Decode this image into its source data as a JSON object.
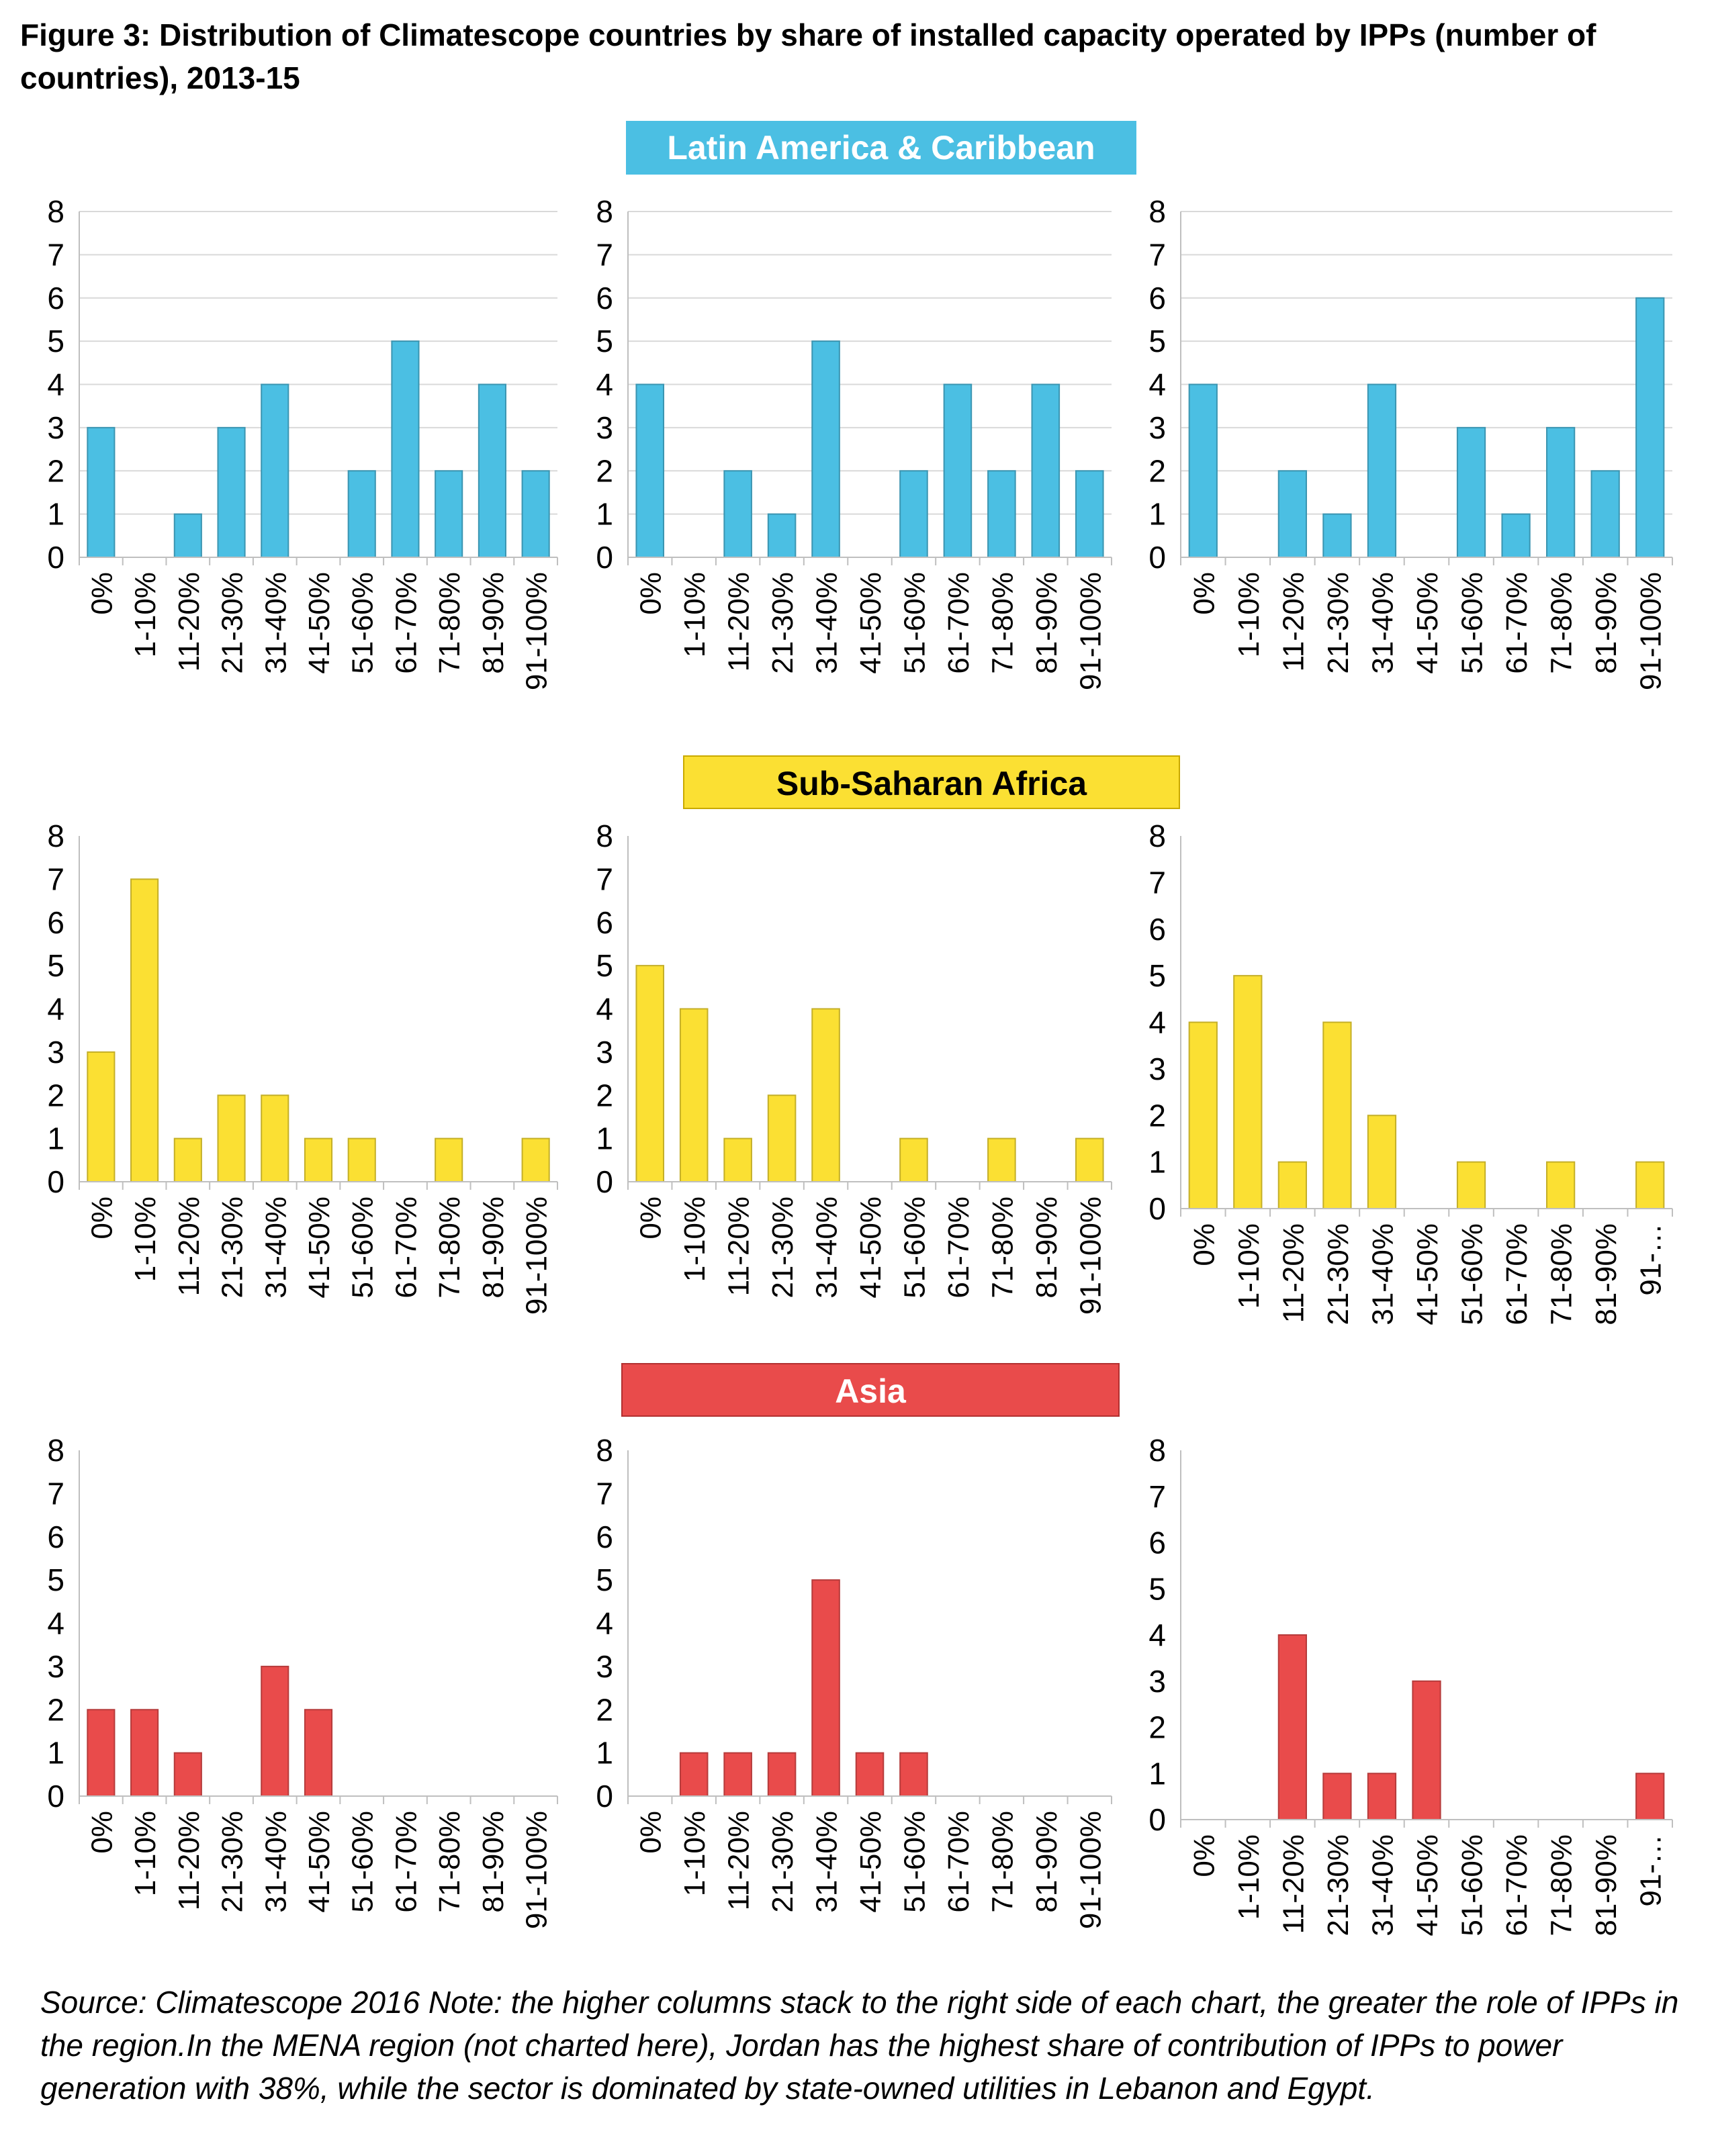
{
  "title": "Figure 3: Distribution of Climatescope countries by share of installed capacity operated by IPPs (number of countries), 2013-15",
  "footnote": "Source: Climatescope 2016   Note: the higher columns stack to the right side of each chart, the greater the role of IPPs in the region.In the MENA region (not charted here), Jordan has the highest share of contribution of IPPs to power generation with 38%, while the sector is dominated by state-owned utilities in Lebanon and Egypt.",
  "regions": [
    {
      "name": "Latin America & Caribbean",
      "color": "#4BBFE3"
    },
    {
      "name": "Sub-Saharan Africa",
      "color": "#FBE033"
    },
    {
      "name": "Asia",
      "color": "#E94B4B"
    }
  ],
  "chart_data": [
    {
      "type": "bar",
      "region": "Latin America & Caribbean",
      "position": "left",
      "color": "#4BBFE3",
      "ylim": [
        0,
        8
      ],
      "yticks": [
        0,
        1,
        2,
        3,
        4,
        5,
        6,
        7,
        8
      ],
      "grid": true,
      "categories": [
        "0%",
        "1-10%",
        "11-20%",
        "21-30%",
        "31-40%",
        "41-50%",
        "51-60%",
        "61-70%",
        "71-80%",
        "81-90%",
        "91-100%"
      ],
      "values": [
        3,
        0,
        1,
        3,
        4,
        0,
        2,
        5,
        2,
        4,
        2
      ]
    },
    {
      "type": "bar",
      "region": "Latin America & Caribbean",
      "position": "middle",
      "color": "#4BBFE3",
      "ylim": [
        0,
        8
      ],
      "yticks": [
        0,
        1,
        2,
        3,
        4,
        5,
        6,
        7,
        8
      ],
      "grid": true,
      "categories": [
        "0%",
        "1-10%",
        "11-20%",
        "21-30%",
        "31-40%",
        "41-50%",
        "51-60%",
        "61-70%",
        "71-80%",
        "81-90%",
        "91-100%"
      ],
      "values": [
        4,
        0,
        2,
        1,
        5,
        0,
        2,
        4,
        2,
        4,
        2
      ]
    },
    {
      "type": "bar",
      "region": "Latin America & Caribbean",
      "position": "right",
      "color": "#4BBFE3",
      "ylim": [
        0,
        8
      ],
      "yticks": [
        0,
        1,
        2,
        3,
        4,
        5,
        6,
        7,
        8
      ],
      "grid": true,
      "categories": [
        "0%",
        "1-10%",
        "11-20%",
        "21-30%",
        "31-40%",
        "41-50%",
        "51-60%",
        "61-70%",
        "71-80%",
        "81-90%",
        "91-100%"
      ],
      "values": [
        4,
        0,
        2,
        1,
        4,
        0,
        3,
        1,
        3,
        2,
        6
      ]
    },
    {
      "type": "bar",
      "region": "Sub-Saharan Africa",
      "position": "left",
      "color": "#FBE033",
      "ylim": [
        0,
        8
      ],
      "yticks": [
        0,
        1,
        2,
        3,
        4,
        5,
        6,
        7,
        8
      ],
      "grid": false,
      "categories": [
        "0%",
        "1-10%",
        "11-20%",
        "21-30%",
        "31-40%",
        "41-50%",
        "51-60%",
        "61-70%",
        "71-80%",
        "81-90%",
        "91-100%"
      ],
      "values": [
        3,
        7,
        1,
        2,
        2,
        1,
        1,
        0,
        1,
        0,
        1
      ]
    },
    {
      "type": "bar",
      "region": "Sub-Saharan Africa",
      "position": "middle",
      "color": "#FBE033",
      "ylim": [
        0,
        8
      ],
      "yticks": [
        0,
        1,
        2,
        3,
        4,
        5,
        6,
        7,
        8
      ],
      "grid": false,
      "categories": [
        "0%",
        "1-10%",
        "11-20%",
        "21-30%",
        "31-40%",
        "41-50%",
        "51-60%",
        "61-70%",
        "71-80%",
        "81-90%",
        "91-100%"
      ],
      "values": [
        5,
        4,
        1,
        2,
        4,
        0,
        1,
        0,
        1,
        0,
        1
      ]
    },
    {
      "type": "bar",
      "region": "Sub-Saharan Africa",
      "position": "right",
      "color": "#FBE033",
      "ylim": [
        0,
        8
      ],
      "yticks": [
        0,
        1,
        2,
        3,
        4,
        5,
        6,
        7,
        8
      ],
      "grid": false,
      "categories": [
        "0%",
        "1-10%",
        "11-20%",
        "21-30%",
        "31-40%",
        "41-50%",
        "51-60%",
        "61-70%",
        "71-80%",
        "81-90%",
        "91-…"
      ],
      "values": [
        4,
        5,
        1,
        4,
        2,
        0,
        1,
        0,
        1,
        0,
        1
      ]
    },
    {
      "type": "bar",
      "region": "Asia",
      "position": "left",
      "color": "#E94B4B",
      "ylim": [
        0,
        8
      ],
      "yticks": [
        0,
        1,
        2,
        3,
        4,
        5,
        6,
        7,
        8
      ],
      "grid": false,
      "categories": [
        "0%",
        "1-10%",
        "11-20%",
        "21-30%",
        "31-40%",
        "41-50%",
        "51-60%",
        "61-70%",
        "71-80%",
        "81-90%",
        "91-100%"
      ],
      "values": [
        2,
        2,
        1,
        0,
        3,
        2,
        0,
        0,
        0,
        0,
        0
      ]
    },
    {
      "type": "bar",
      "region": "Asia",
      "position": "middle",
      "color": "#E94B4B",
      "ylim": [
        0,
        8
      ],
      "yticks": [
        0,
        1,
        2,
        3,
        4,
        5,
        6,
        7,
        8
      ],
      "grid": false,
      "categories": [
        "0%",
        "1-10%",
        "11-20%",
        "21-30%",
        "31-40%",
        "41-50%",
        "51-60%",
        "61-70%",
        "71-80%",
        "81-90%",
        "91-100%"
      ],
      "values": [
        0,
        1,
        1,
        1,
        5,
        1,
        1,
        0,
        0,
        0,
        0
      ]
    },
    {
      "type": "bar",
      "region": "Asia",
      "position": "right",
      "color": "#E94B4B",
      "ylim": [
        0,
        8
      ],
      "yticks": [
        0,
        1,
        2,
        3,
        4,
        5,
        6,
        7,
        8
      ],
      "grid": false,
      "categories": [
        "0%",
        "1-10%",
        "11-20%",
        "21-30%",
        "31-40%",
        "41-50%",
        "51-60%",
        "61-70%",
        "71-80%",
        "81-90%",
        "91-…"
      ],
      "values": [
        0,
        0,
        4,
        1,
        1,
        3,
        0,
        0,
        0,
        0,
        1
      ]
    }
  ]
}
